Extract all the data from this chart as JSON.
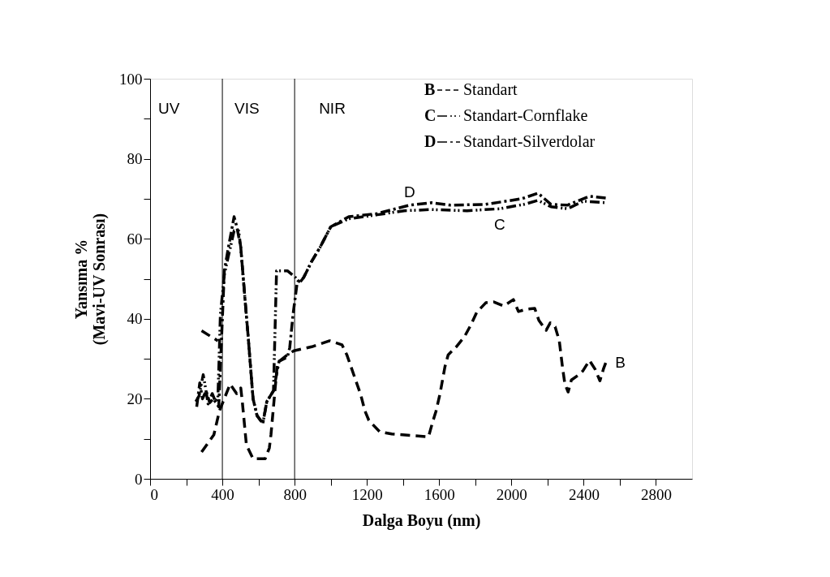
{
  "chart_data": {
    "type": "line",
    "xlabel": "Dalga Boyu (nm)",
    "ylabel": "Yansıma %\n(Mavi-UV Sonrası)",
    "xlim": [
      0,
      3000
    ],
    "ylim": [
      0,
      100
    ],
    "xticks": [
      0,
      {
        "value": 200,
        "label": null
      },
      400,
      {
        "value": 600,
        "label": null
      },
      800,
      {
        "value": 1000,
        "label": null
      },
      1200,
      {
        "value": 1400,
        "label": null
      },
      1600,
      {
        "value": 1800,
        "label": null
      },
      2000,
      {
        "value": 2200,
        "label": null
      },
      2400,
      {
        "value": 2600,
        "label": null
      },
      2800
    ],
    "yticks": [
      0,
      {
        "value": 10,
        "label": null
      },
      20,
      {
        "value": 30,
        "label": null
      },
      40,
      {
        "value": 50,
        "label": null
      },
      60,
      {
        "value": 70,
        "label": null
      },
      80,
      {
        "value": 90,
        "label": null
      },
      100
    ],
    "grid": false,
    "legend": "top right",
    "marker": "none",
    "series": [
      {
        "name": "Standart",
        "color": "#000000",
        "line_style": "dashed",
        "x": [
          285,
          353,
          384,
          443,
          479,
          502,
          511,
          533,
          570,
          637,
          660,
          669,
          705,
          760,
          796,
          895,
          994,
          1062,
          1089,
          1166,
          1189,
          1211,
          1270,
          1338,
          1541,
          1564,
          1582,
          1605,
          1632,
          1650,
          1695,
          1740,
          1776,
          1808,
          1858,
          1903,
          1957,
          2011,
          2039,
          2084,
          2129,
          2152,
          2192,
          2215,
          2242,
          2265,
          2283,
          2296,
          2314,
          2332,
          2373,
          2396,
          2432,
          2463,
          2490,
          2509,
          2522
        ],
        "values": [
          6.7,
          11,
          17,
          23.7,
          21.3,
          22.7,
          19,
          8.5,
          5,
          5,
          7.7,
          11,
          29,
          31,
          32,
          33,
          34.5,
          33.5,
          31,
          21,
          17,
          14.6,
          11.8,
          11.2,
          10.5,
          14.2,
          16.8,
          21.3,
          28,
          31,
          33,
          35.5,
          38.5,
          41.6,
          44,
          44.2,
          43.2,
          44.8,
          41.8,
          42.4,
          42.6,
          39.6,
          37.1,
          39,
          38,
          34.5,
          27.8,
          23.7,
          21.7,
          24.7,
          26,
          27,
          29.6,
          27.4,
          24.5,
          27.4,
          29
        ]
      },
      {
        "name": "Standart-Cornflake",
        "color": "#000000",
        "line_style": "dashdotdot",
        "x": [
          253,
          271,
          294,
          307,
          321,
          344,
          362,
          375,
          380,
          389,
          411,
          434,
          465,
          490,
          502,
          524,
          542,
          556,
          570,
          592,
          624,
          646,
          683,
          700,
          714,
          760,
          805,
          827,
          850,
          895,
          940,
          1000,
          1100,
          1257,
          1406,
          1559,
          1754,
          1935,
          2070,
          2147,
          2219,
          2310,
          2400,
          2522
        ],
        "values": [
          19.3,
          20.7,
          26,
          22.7,
          18.7,
          21.3,
          19.3,
          20,
          27,
          41,
          51,
          55.8,
          62,
          62,
          57.8,
          45.6,
          36,
          28,
          20,
          15.8,
          13.8,
          19.3,
          22,
          52,
          52,
          52,
          50.3,
          49,
          50.3,
          54.4,
          57.8,
          63,
          65,
          66,
          67,
          67.3,
          67,
          67.5,
          68.6,
          69.6,
          68,
          67.5,
          69.4,
          69
        ]
      },
      {
        "name": "Standart-Silverdolar",
        "color": "#000000",
        "line_style": "dashdot",
        "x": [
          258,
          275,
          290,
          310,
          330,
          350,
          380,
          400,
          411,
          434,
          465,
          480,
          502,
          524,
          542,
          556,
          570,
          592,
          624,
          646,
          683,
          714,
          760,
          773,
          791,
          814,
          850,
          895,
          940,
          1000,
          1100,
          1257,
          1437,
          1559,
          1663,
          1858,
          2057,
          2147,
          2219,
          2310,
          2432,
          2522
        ],
        "values": [
          18,
          24,
          20,
          22,
          19,
          20,
          18,
          40,
          52,
          58,
          65.5,
          63,
          57.8,
          45.6,
          36,
          28,
          20,
          15.8,
          13.8,
          19.3,
          22,
          29.4,
          30.4,
          32.8,
          41,
          49,
          50.3,
          54.4,
          57.8,
          63,
          65.5,
          66.3,
          68.4,
          69,
          68.4,
          68.6,
          70,
          71.4,
          68.6,
          68.4,
          70.6,
          70.2
        ]
      },
      {
        "color": "#000000",
        "line_style": "dashed",
        "x": [
          285,
          375
        ],
        "values": [
          37,
          34.5
        ]
      }
    ],
    "ref_lines": [
      {
        "axis": "x",
        "value": 400,
        "color": "#000000"
      },
      {
        "axis": "x",
        "value": 800,
        "color": "#000000"
      }
    ],
    "annotations": [
      "B",
      "C",
      "D",
      "UV",
      "VIS",
      "NIR"
    ]
  }
}
